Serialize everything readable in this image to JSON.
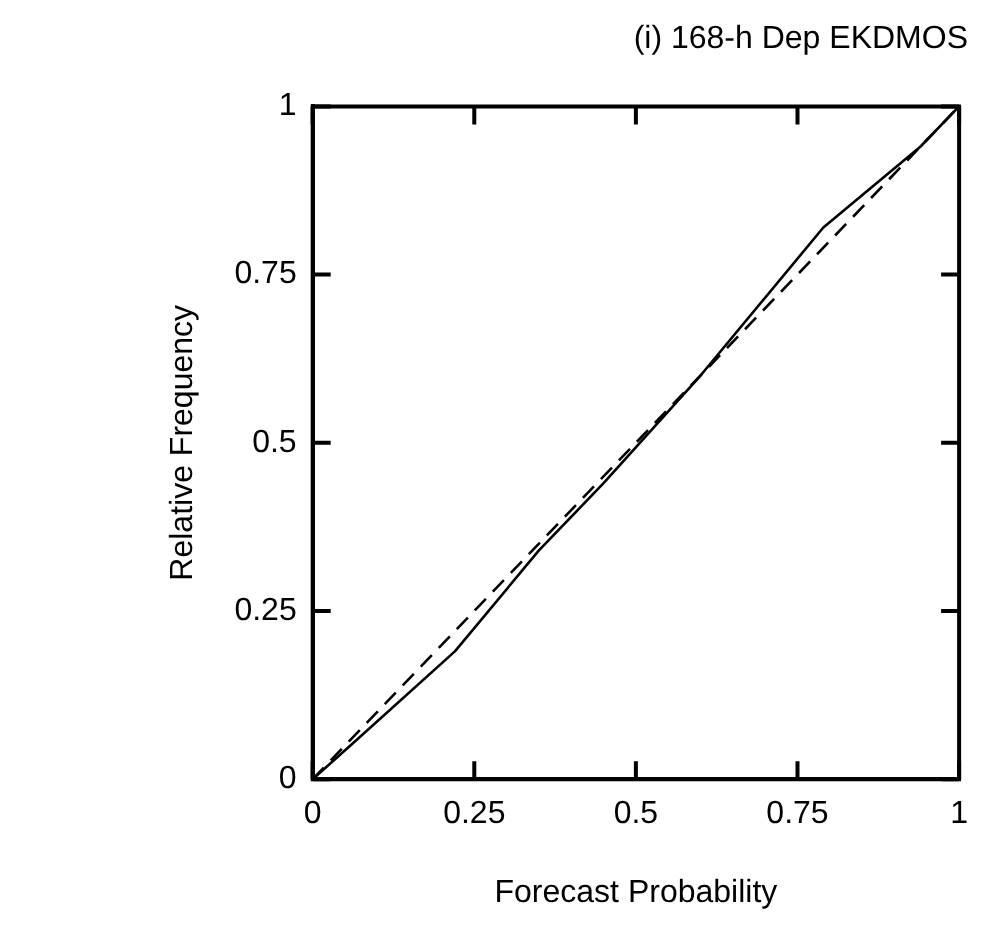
{
  "chart_data": {
    "type": "line",
    "title": "(i) 168-h Dep EKDMOS",
    "xlabel": "Forecast Probability",
    "ylabel": "Relative Frequency",
    "xlim": [
      0,
      1
    ],
    "ylim": [
      0,
      1
    ],
    "xticks": [
      0,
      0.25,
      0.5,
      0.75,
      1
    ],
    "yticks": [
      0,
      0.25,
      0.5,
      0.75,
      1
    ],
    "grid": false,
    "legend": false,
    "marker": "none",
    "series": [
      {
        "color": "#000000",
        "line_style": "solid",
        "x": [
          0,
          0.07,
          0.22,
          0.35,
          0.45,
          0.6,
          0.79,
          0.94,
          1
        ],
        "values": [
          0,
          0.06,
          0.19,
          0.34,
          0.44,
          0.6,
          0.82,
          0.94,
          1
        ]
      },
      {
        "color": "#000000",
        "line_style": "dashed",
        "x": [
          0,
          1
        ],
        "values": [
          0,
          1
        ]
      }
    ]
  }
}
